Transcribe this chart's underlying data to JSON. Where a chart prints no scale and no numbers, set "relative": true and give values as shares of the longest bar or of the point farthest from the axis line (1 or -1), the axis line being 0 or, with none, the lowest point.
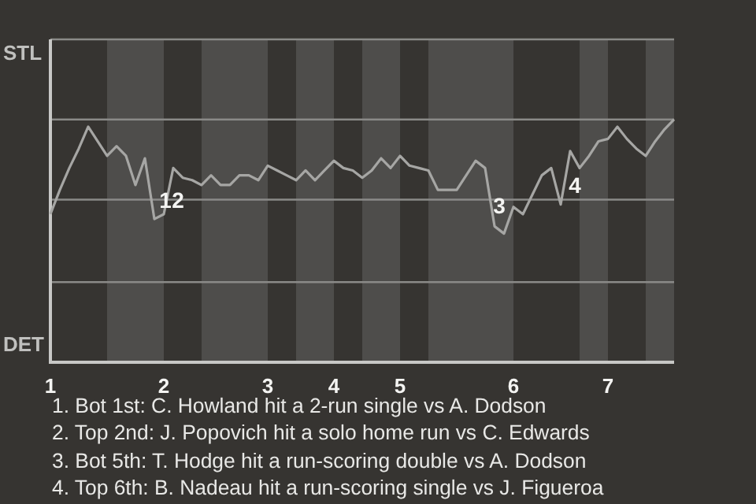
{
  "chart_data": {
    "type": "line",
    "relative": true,
    "categories": [
      "1",
      null,
      null,
      null,
      null,
      null,
      null,
      null,
      null,
      null,
      null,
      null,
      "2",
      null,
      null,
      null,
      null,
      null,
      null,
      null,
      null,
      null,
      null,
      "3",
      null,
      null,
      null,
      null,
      null,
      null,
      "4",
      null,
      null,
      null,
      null,
      null,
      null,
      "5",
      null,
      null,
      null,
      null,
      null,
      null,
      null,
      null,
      null,
      null,
      null,
      "6",
      null,
      null,
      null,
      null,
      null,
      null,
      null,
      null,
      null,
      "7",
      null,
      null,
      null,
      null,
      null,
      null,
      null
    ],
    "values": [
      0.61,
      0.71,
      0.8,
      0.88,
      0.97,
      0.91,
      0.85,
      0.89,
      0.85,
      0.73,
      0.84,
      0.59,
      0.61,
      0.8,
      0.76,
      0.75,
      0.73,
      0.77,
      0.73,
      0.73,
      0.77,
      0.77,
      0.75,
      0.81,
      0.79,
      0.77,
      0.75,
      0.79,
      0.75,
      0.79,
      0.83,
      0.8,
      0.79,
      0.76,
      0.79,
      0.84,
      0.8,
      0.85,
      0.81,
      0.8,
      0.79,
      0.71,
      0.71,
      0.71,
      0.77,
      0.83,
      0.8,
      0.56,
      0.53,
      0.64,
      0.61,
      0.69,
      0.77,
      0.8,
      0.65,
      0.87,
      0.8,
      0.85,
      0.91,
      0.92,
      0.97,
      0.92,
      0.88,
      0.85,
      0.91,
      0.96,
      1
    ],
    "color": "#a6a6a4",
    "ref_lines": [
      {
        "axis": "y",
        "value": 0.33,
        "color": "#8a8a88"
      },
      {
        "axis": "y",
        "value": 0.67,
        "color": "#8a8a88"
      },
      {
        "axis": "y",
        "value": 1,
        "color": "#8a8a88"
      },
      {
        "axis": "y",
        "value": 1.33,
        "color": "#8a8a88"
      }
    ],
    "annotations": [
      "STL",
      "DET",
      "1",
      "2",
      "3",
      "4",
      "1. Bot 1st: C. Howland hit a 2-run single vs A. Dodson",
      "2. Top 2nd: J. Popovich hit a solo home run vs C. Edwards",
      "3. Bot 5th: T. Hodge hit a run-scoring double vs A. Dodson",
      "4. Top 6th: B. Nadeau hit a run-scoring single vs J. Figueroa"
    ]
  }
}
